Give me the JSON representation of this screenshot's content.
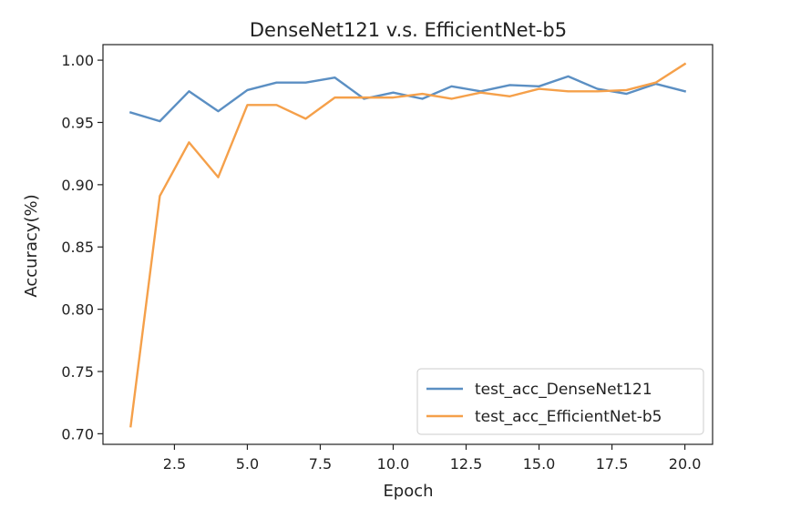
{
  "chart_data": {
    "type": "line",
    "title": "DenseNet121 v.s. EfficientNet-b5",
    "xlabel": "Epoch",
    "ylabel": "Accuracy(%)",
    "xlim": [
      0.05,
      20.95
    ],
    "ylim": [
      0.6915,
      1.0125
    ],
    "x_ticks": [
      2.5,
      5.0,
      7.5,
      10.0,
      12.5,
      15.0,
      17.5,
      20.0
    ],
    "x_tick_labels": [
      "2.5",
      "5.0",
      "7.5",
      "10.0",
      "12.5",
      "15.0",
      "17.5",
      "20.0"
    ],
    "y_ticks": [
      0.7,
      0.75,
      0.8,
      0.85,
      0.9,
      0.95,
      1.0
    ],
    "y_tick_labels": [
      "0.70",
      "0.75",
      "0.80",
      "0.85",
      "0.90",
      "0.95",
      "1.00"
    ],
    "grid": false,
    "legend_position": "lower-right",
    "x": [
      1,
      2,
      3,
      4,
      5,
      6,
      7,
      8,
      9,
      10,
      11,
      12,
      13,
      14,
      15,
      16,
      17,
      18,
      19,
      20
    ],
    "series": [
      {
        "name": "test_acc_DenseNet121",
        "color": "#5b8fc3",
        "values": [
          0.958,
          0.951,
          0.975,
          0.959,
          0.976,
          0.982,
          0.982,
          0.986,
          0.969,
          0.974,
          0.969,
          0.979,
          0.975,
          0.98,
          0.979,
          0.987,
          0.977,
          0.973,
          0.981,
          0.975
        ]
      },
      {
        "name": "test_acc_EfficientNet-b5",
        "color": "#f5a04a",
        "values": [
          0.706,
          0.891,
          0.934,
          0.906,
          0.964,
          0.964,
          0.953,
          0.97,
          0.97,
          0.97,
          0.973,
          0.969,
          0.974,
          0.971,
          0.977,
          0.975,
          0.975,
          0.976,
          0.982,
          0.997
        ]
      }
    ]
  }
}
